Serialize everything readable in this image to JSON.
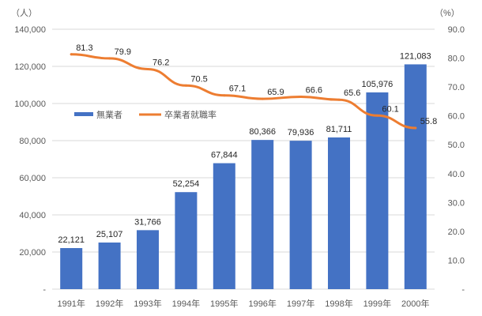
{
  "colors": {
    "bar": "#4472C4",
    "line": "#ED7D31",
    "grid": "#D9D9D9",
    "axis_text": "#595959"
  },
  "chart_data": {
    "type": "bar",
    "title": "",
    "categories": [
      "1991年",
      "1992年",
      "1993年",
      "1994年",
      "1995年",
      "1996年",
      "1997年",
      "1998年",
      "1999年",
      "2000年"
    ],
    "y_left": {
      "unit_label": "（人）",
      "ylim": [
        0,
        140000
      ],
      "tick_step": 20000,
      "ticks": [
        "-",
        "20,000",
        "40,000",
        "60,000",
        "80,000",
        "100,000",
        "120,000",
        "140,000"
      ]
    },
    "y_right": {
      "unit_label": "（%）",
      "ylim": [
        0,
        90
      ],
      "tick_step": 10,
      "ticks": [
        "-",
        "10.0",
        "20.0",
        "30.0",
        "40.0",
        "50.0",
        "60.0",
        "70.0",
        "80.0",
        "90.0"
      ]
    },
    "grid": true,
    "legend_position": "center-left",
    "series": [
      {
        "name": "無業者",
        "type": "bar",
        "axis": "left",
        "values": [
          22121,
          25107,
          31766,
          52254,
          67844,
          80366,
          79936,
          81711,
          105976,
          121083
        ],
        "labels": [
          "22,121",
          "25,107",
          "31,766",
          "52,254",
          "67,844",
          "80,366",
          "79,936",
          "81,711",
          "105,976",
          "121,083"
        ]
      },
      {
        "name": "卒業者就職率",
        "type": "line",
        "axis": "right",
        "values": [
          81.3,
          79.9,
          76.2,
          70.5,
          67.1,
          65.9,
          66.6,
          65.6,
          60.1,
          55.8
        ],
        "labels": [
          "81.3",
          "79.9",
          "76.2",
          "70.5",
          "67.1",
          "65.9",
          "66.6",
          "65.6",
          "60.1",
          "55.8"
        ]
      }
    ]
  }
}
